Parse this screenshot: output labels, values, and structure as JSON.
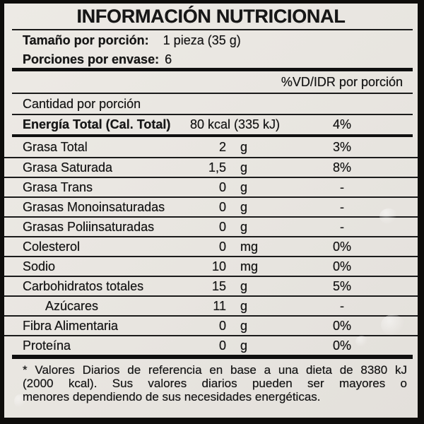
{
  "label": {
    "title": "INFORMACIÓN NUTRICIONAL",
    "serving": {
      "label": "Tamaño por porción:",
      "value": "1 pieza (35 g)"
    },
    "servings_per_pack": {
      "label": "Porciones por envase:",
      "value": "6"
    },
    "dv_header": "%VD/IDR por porción",
    "amount_header": "Cantidad por porción",
    "energy": {
      "name": "Energía Total (Cal. Total)",
      "value": "80 kcal (335 kJ)",
      "dv": "4%"
    },
    "rows": [
      {
        "name": "Grasa Total",
        "amount": "2",
        "unit": "g",
        "dv": "3%"
      },
      {
        "name": "Grasa Saturada",
        "amount": "1,5",
        "unit": "g",
        "dv": "8%"
      },
      {
        "name": "Grasa Trans",
        "amount": "0",
        "unit": "g",
        "dv": "-"
      },
      {
        "name": "Grasas Monoinsaturadas",
        "amount": "0",
        "unit": "g",
        "dv": "-"
      },
      {
        "name": "Grasas Poliinsaturadas",
        "amount": "0",
        "unit": "g",
        "dv": "-"
      },
      {
        "name": "Colesterol",
        "amount": "0",
        "unit": "mg",
        "dv": "0%"
      },
      {
        "name": "Sodio",
        "amount": "10",
        "unit": "mg",
        "dv": "0%"
      },
      {
        "name": "Carbohidratos totales",
        "amount": "15",
        "unit": "g",
        "dv": "5%"
      },
      {
        "name": "Azúcares",
        "amount": "11",
        "unit": "g",
        "dv": "-"
      },
      {
        "name": "Fibra Alimentaria",
        "amount": "0",
        "unit": "g",
        "dv": "0%"
      },
      {
        "name": "Proteína",
        "amount": "0",
        "unit": "g",
        "dv": "0%"
      }
    ],
    "footnote_lines": [
      "* Valores Diarios de referencia en base a una dieta de 8380 kJ",
      "(2000 kcal). Sus valores diarios pueden ser mayores o",
      "menores dependiendo de sus necesidades energéticas."
    ],
    "colors": {
      "background": "#e8e5e0",
      "ink": "#171717",
      "frame": "#0e0d0b"
    }
  }
}
